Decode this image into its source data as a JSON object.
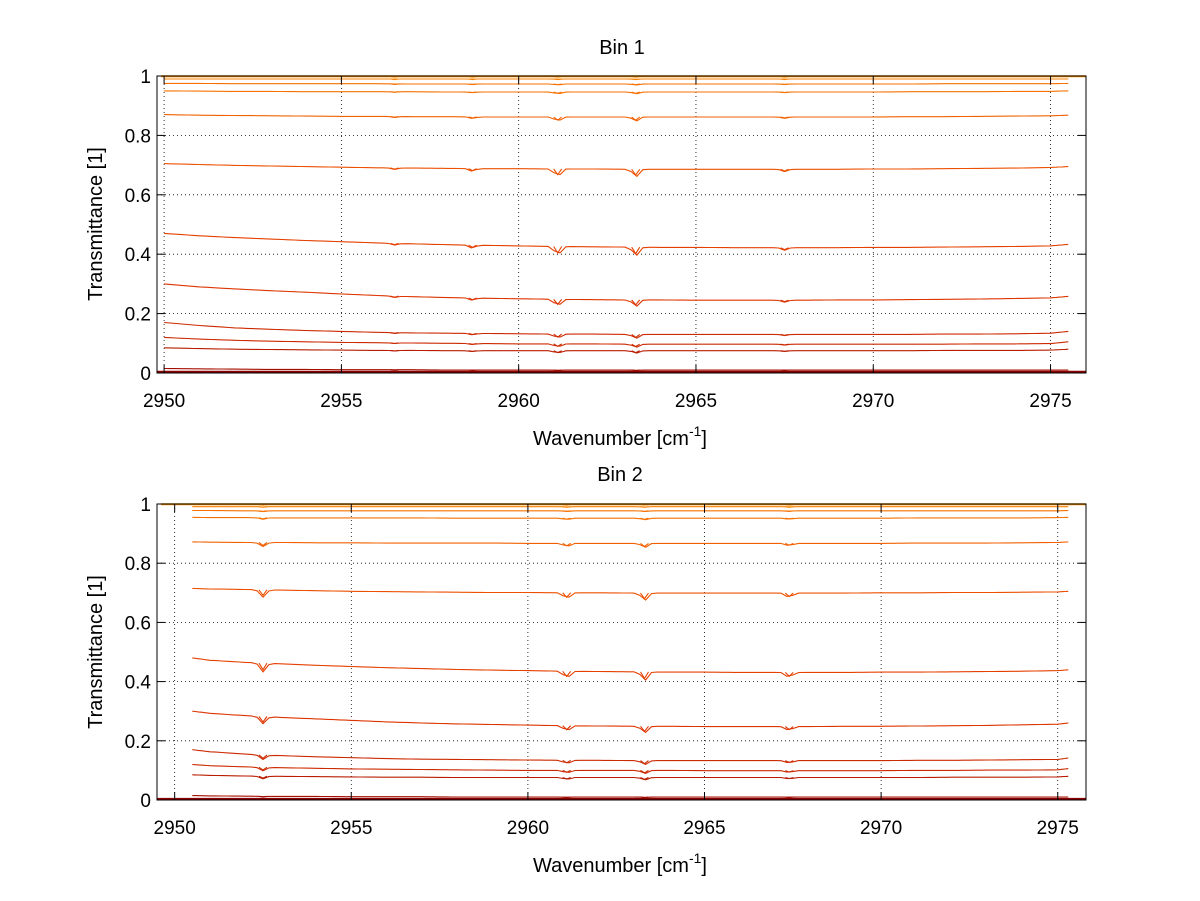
{
  "colors": {
    "background": "#ffffff",
    "axes": "#000000",
    "grid": "#000000",
    "series_palette": [
      "#8b0000",
      "#a50f00",
      "#b91c00",
      "#cc2a00",
      "#dd3500",
      "#e54000",
      "#ec5000",
      "#f26000",
      "#f77000",
      "#fa8000",
      "#fd8f00"
    ]
  },
  "chart_data": [
    {
      "type": "line",
      "title": "Bin 1",
      "xlabel": "Wavenumber [cm",
      "xlabel_sup": "-1",
      "xlabel_end": "]",
      "ylabel": "Transmittance [1]",
      "xlim": [
        2949.8,
        2976
      ],
      "ylim": [
        0,
        1
      ],
      "xticks": [
        2950,
        2955,
        2960,
        2965,
        2970,
        2975
      ],
      "xtick_labels": [
        "2950",
        "2955",
        "2960",
        "2965",
        "2970",
        "2975"
      ],
      "yticks": [
        0,
        0.2,
        0.4,
        0.6,
        0.8,
        1
      ],
      "ytick_labels": [
        "0",
        "0.2",
        "0.4",
        "0.6",
        "0.8",
        "1"
      ],
      "grid": true,
      "x": [
        2950,
        2951,
        2952,
        2953,
        2954,
        2955,
        2956,
        2957,
        2958,
        2959,
        2960,
        2961,
        2962,
        2963,
        2964,
        2965,
        2966,
        2967,
        2968,
        2969,
        2970,
        2971,
        2972,
        2973,
        2974,
        2975,
        2975.5
      ],
      "absorption_lines": [
        2956.5,
        2958.7,
        2961.1,
        2963.3,
        2967.5
      ],
      "line_depth_scale": [
        0.2,
        0.35,
        1.0,
        1.0,
        0.3
      ],
      "series": [
        {
          "values": [
            0.003,
            0.003,
            0.003,
            0.003,
            0.003,
            0.003,
            0.003,
            0.003,
            0.003,
            0.003,
            0.003,
            0.003,
            0.003,
            0.003,
            0.003,
            0.003,
            0.003,
            0.003,
            0.003,
            0.003,
            0.003,
            0.003,
            0.003,
            0.003,
            0.003,
            0.003,
            0.003
          ]
        },
        {
          "values": [
            0.015,
            0.014,
            0.013,
            0.012,
            0.012,
            0.011,
            0.011,
            0.011,
            0.01,
            0.01,
            0.01,
            0.01,
            0.01,
            0.01,
            0.01,
            0.01,
            0.01,
            0.01,
            0.01,
            0.01,
            0.01,
            0.01,
            0.01,
            0.01,
            0.01,
            0.01,
            0.01
          ]
        },
        {
          "values": [
            0.085,
            0.082,
            0.08,
            0.079,
            0.078,
            0.077,
            0.076,
            0.076,
            0.075,
            0.075,
            0.075,
            0.075,
            0.075,
            0.075,
            0.075,
            0.075,
            0.075,
            0.075,
            0.075,
            0.075,
            0.075,
            0.075,
            0.076,
            0.076,
            0.076,
            0.077,
            0.08
          ]
        },
        {
          "values": [
            0.12,
            0.114,
            0.11,
            0.107,
            0.105,
            0.103,
            0.102,
            0.101,
            0.1,
            0.099,
            0.098,
            0.098,
            0.098,
            0.097,
            0.097,
            0.097,
            0.097,
            0.097,
            0.097,
            0.097,
            0.097,
            0.097,
            0.097,
            0.098,
            0.098,
            0.099,
            0.105
          ]
        },
        {
          "values": [
            0.17,
            0.16,
            0.152,
            0.147,
            0.143,
            0.14,
            0.137,
            0.135,
            0.134,
            0.133,
            0.132,
            0.131,
            0.131,
            0.13,
            0.13,
            0.13,
            0.13,
            0.13,
            0.13,
            0.13,
            0.13,
            0.13,
            0.131,
            0.131,
            0.132,
            0.134,
            0.14
          ]
        },
        {
          "values": [
            0.3,
            0.29,
            0.283,
            0.277,
            0.272,
            0.266,
            0.261,
            0.257,
            0.254,
            0.252,
            0.25,
            0.248,
            0.247,
            0.246,
            0.246,
            0.245,
            0.245,
            0.245,
            0.245,
            0.246,
            0.246,
            0.247,
            0.248,
            0.249,
            0.251,
            0.253,
            0.258
          ]
        },
        {
          "values": [
            0.47,
            0.462,
            0.456,
            0.451,
            0.446,
            0.442,
            0.438,
            0.435,
            0.432,
            0.43,
            0.428,
            0.426,
            0.425,
            0.424,
            0.423,
            0.423,
            0.422,
            0.422,
            0.422,
            0.422,
            0.423,
            0.423,
            0.424,
            0.425,
            0.426,
            0.428,
            0.433
          ]
        },
        {
          "values": [
            0.705,
            0.702,
            0.699,
            0.697,
            0.695,
            0.693,
            0.691,
            0.69,
            0.689,
            0.688,
            0.688,
            0.687,
            0.687,
            0.686,
            0.686,
            0.686,
            0.686,
            0.686,
            0.686,
            0.686,
            0.687,
            0.687,
            0.688,
            0.689,
            0.69,
            0.692,
            0.695
          ]
        },
        {
          "values": [
            0.87,
            0.868,
            0.867,
            0.866,
            0.865,
            0.864,
            0.864,
            0.863,
            0.863,
            0.862,
            0.862,
            0.862,
            0.862,
            0.862,
            0.862,
            0.862,
            0.862,
            0.862,
            0.862,
            0.862,
            0.862,
            0.863,
            0.863,
            0.864,
            0.865,
            0.866,
            0.868
          ]
        },
        {
          "values": [
            0.95,
            0.949,
            0.948,
            0.948,
            0.947,
            0.947,
            0.947,
            0.947,
            0.946,
            0.946,
            0.946,
            0.946,
            0.946,
            0.946,
            0.946,
            0.946,
            0.946,
            0.946,
            0.946,
            0.946,
            0.946,
            0.947,
            0.947,
            0.947,
            0.948,
            0.948,
            0.95
          ]
        },
        {
          "values": [
            0.975,
            0.975,
            0.974,
            0.974,
            0.974,
            0.974,
            0.974,
            0.973,
            0.973,
            0.973,
            0.973,
            0.973,
            0.973,
            0.973,
            0.973,
            0.973,
            0.973,
            0.973,
            0.973,
            0.973,
            0.973,
            0.973,
            0.974,
            0.974,
            0.974,
            0.974,
            0.975
          ]
        },
        {
          "values": [
            0.99,
            0.99,
            0.99,
            0.99,
            0.99,
            0.99,
            0.99,
            0.99,
            0.99,
            0.99,
            0.99,
            0.99,
            0.99,
            0.99,
            0.99,
            0.99,
            0.99,
            0.99,
            0.99,
            0.99,
            0.99,
            0.99,
            0.99,
            0.99,
            0.99,
            0.99,
            0.99
          ]
        },
        {
          "values": [
            0.998,
            0.998,
            0.998,
            0.998,
            0.998,
            0.998,
            0.998,
            0.998,
            0.998,
            0.998,
            0.998,
            0.998,
            0.998,
            0.998,
            0.998,
            0.998,
            0.998,
            0.998,
            0.998,
            0.998,
            0.998,
            0.998,
            0.998,
            0.998,
            0.998,
            0.998,
            0.998
          ]
        }
      ]
    },
    {
      "type": "line",
      "title": "Bin 2",
      "xlabel": "Wavenumber [cm",
      "xlabel_sup": "-1",
      "xlabel_end": "]",
      "ylabel": "Transmittance [1]",
      "xlim": [
        2949.5,
        2975.8
      ],
      "ylim": [
        0,
        1
      ],
      "xticks": [
        2950,
        2955,
        2960,
        2965,
        2970,
        2975
      ],
      "xtick_labels": [
        "2950",
        "2955",
        "2960",
        "2965",
        "2970",
        "2975"
      ],
      "yticks": [
        0,
        0.2,
        0.4,
        0.6,
        0.8,
        1
      ],
      "ytick_labels": [
        "0",
        "0.2",
        "0.4",
        "0.6",
        "0.8",
        "1"
      ],
      "grid": true,
      "x": [
        2950.5,
        2951,
        2952,
        2953,
        2954,
        2955,
        2956,
        2957,
        2958,
        2959,
        2960,
        2961,
        2962,
        2963,
        2964,
        2965,
        2966,
        2967,
        2968,
        2969,
        2970,
        2971,
        2972,
        2973,
        2974,
        2975,
        2975.3
      ],
      "absorption_lines": [
        2952.5,
        2961.1,
        2963.3,
        2967.4
      ],
      "line_depth_scale": [
        1.0,
        0.8,
        1.0,
        0.6
      ],
      "series": [
        {
          "values": [
            0.003,
            0.003,
            0.003,
            0.003,
            0.003,
            0.003,
            0.003,
            0.003,
            0.003,
            0.003,
            0.003,
            0.003,
            0.003,
            0.003,
            0.003,
            0.003,
            0.003,
            0.003,
            0.003,
            0.003,
            0.003,
            0.003,
            0.003,
            0.003,
            0.003,
            0.003,
            0.003
          ]
        },
        {
          "values": [
            0.015,
            0.014,
            0.013,
            0.012,
            0.012,
            0.011,
            0.011,
            0.011,
            0.01,
            0.01,
            0.01,
            0.01,
            0.01,
            0.01,
            0.01,
            0.01,
            0.01,
            0.01,
            0.01,
            0.01,
            0.01,
            0.01,
            0.01,
            0.01,
            0.01,
            0.01,
            0.01
          ]
        },
        {
          "values": [
            0.085,
            0.083,
            0.081,
            0.08,
            0.079,
            0.078,
            0.077,
            0.077,
            0.076,
            0.076,
            0.076,
            0.076,
            0.076,
            0.076,
            0.076,
            0.076,
            0.076,
            0.076,
            0.076,
            0.076,
            0.076,
            0.076,
            0.077,
            0.077,
            0.077,
            0.078,
            0.08
          ]
        },
        {
          "values": [
            0.12,
            0.116,
            0.112,
            0.109,
            0.107,
            0.105,
            0.104,
            0.103,
            0.102,
            0.101,
            0.1,
            0.1,
            0.1,
            0.1,
            0.1,
            0.099,
            0.099,
            0.099,
            0.099,
            0.099,
            0.099,
            0.1,
            0.1,
            0.101,
            0.101,
            0.102,
            0.106
          ]
        },
        {
          "values": [
            0.17,
            0.163,
            0.155,
            0.15,
            0.146,
            0.143,
            0.14,
            0.138,
            0.137,
            0.136,
            0.135,
            0.134,
            0.134,
            0.133,
            0.133,
            0.133,
            0.133,
            0.133,
            0.133,
            0.133,
            0.133,
            0.134,
            0.134,
            0.135,
            0.136,
            0.137,
            0.142
          ]
        },
        {
          "values": [
            0.3,
            0.293,
            0.285,
            0.279,
            0.274,
            0.269,
            0.264,
            0.26,
            0.257,
            0.255,
            0.253,
            0.251,
            0.25,
            0.249,
            0.249,
            0.248,
            0.248,
            0.248,
            0.248,
            0.249,
            0.249,
            0.25,
            0.251,
            0.252,
            0.254,
            0.256,
            0.26
          ]
        },
        {
          "values": [
            0.48,
            0.472,
            0.465,
            0.46,
            0.455,
            0.451,
            0.447,
            0.444,
            0.441,
            0.439,
            0.437,
            0.435,
            0.434,
            0.433,
            0.432,
            0.432,
            0.431,
            0.431,
            0.431,
            0.431,
            0.432,
            0.432,
            0.433,
            0.434,
            0.435,
            0.437,
            0.44
          ]
        },
        {
          "values": [
            0.715,
            0.713,
            0.711,
            0.709,
            0.707,
            0.705,
            0.704,
            0.703,
            0.702,
            0.701,
            0.701,
            0.7,
            0.7,
            0.699,
            0.699,
            0.699,
            0.699,
            0.699,
            0.699,
            0.699,
            0.7,
            0.7,
            0.701,
            0.701,
            0.702,
            0.703,
            0.705
          ]
        },
        {
          "values": [
            0.872,
            0.871,
            0.87,
            0.87,
            0.869,
            0.869,
            0.868,
            0.868,
            0.868,
            0.868,
            0.867,
            0.867,
            0.867,
            0.867,
            0.867,
            0.867,
            0.867,
            0.867,
            0.867,
            0.867,
            0.867,
            0.868,
            0.868,
            0.868,
            0.869,
            0.87,
            0.872
          ]
        },
        {
          "values": [
            0.955,
            0.954,
            0.954,
            0.953,
            0.953,
            0.953,
            0.953,
            0.953,
            0.952,
            0.952,
            0.952,
            0.952,
            0.952,
            0.952,
            0.952,
            0.952,
            0.952,
            0.952,
            0.952,
            0.952,
            0.952,
            0.953,
            0.953,
            0.953,
            0.953,
            0.954,
            0.955
          ]
        },
        {
          "values": [
            0.978,
            0.978,
            0.977,
            0.977,
            0.977,
            0.977,
            0.977,
            0.977,
            0.977,
            0.977,
            0.977,
            0.977,
            0.977,
            0.977,
            0.977,
            0.977,
            0.977,
            0.977,
            0.977,
            0.977,
            0.977,
            0.977,
            0.977,
            0.977,
            0.977,
            0.977,
            0.978
          ]
        },
        {
          "values": [
            0.991,
            0.991,
            0.991,
            0.991,
            0.991,
            0.991,
            0.991,
            0.991,
            0.991,
            0.991,
            0.991,
            0.991,
            0.991,
            0.991,
            0.991,
            0.991,
            0.991,
            0.991,
            0.991,
            0.991,
            0.991,
            0.991,
            0.991,
            0.991,
            0.991,
            0.991,
            0.991
          ]
        },
        {
          "values": [
            0.998,
            0.998,
            0.998,
            0.998,
            0.998,
            0.998,
            0.998,
            0.998,
            0.998,
            0.998,
            0.998,
            0.998,
            0.998,
            0.998,
            0.998,
            0.998,
            0.998,
            0.998,
            0.998,
            0.998,
            0.998,
            0.998,
            0.998,
            0.998,
            0.998,
            0.998,
            0.998
          ]
        }
      ]
    }
  ]
}
